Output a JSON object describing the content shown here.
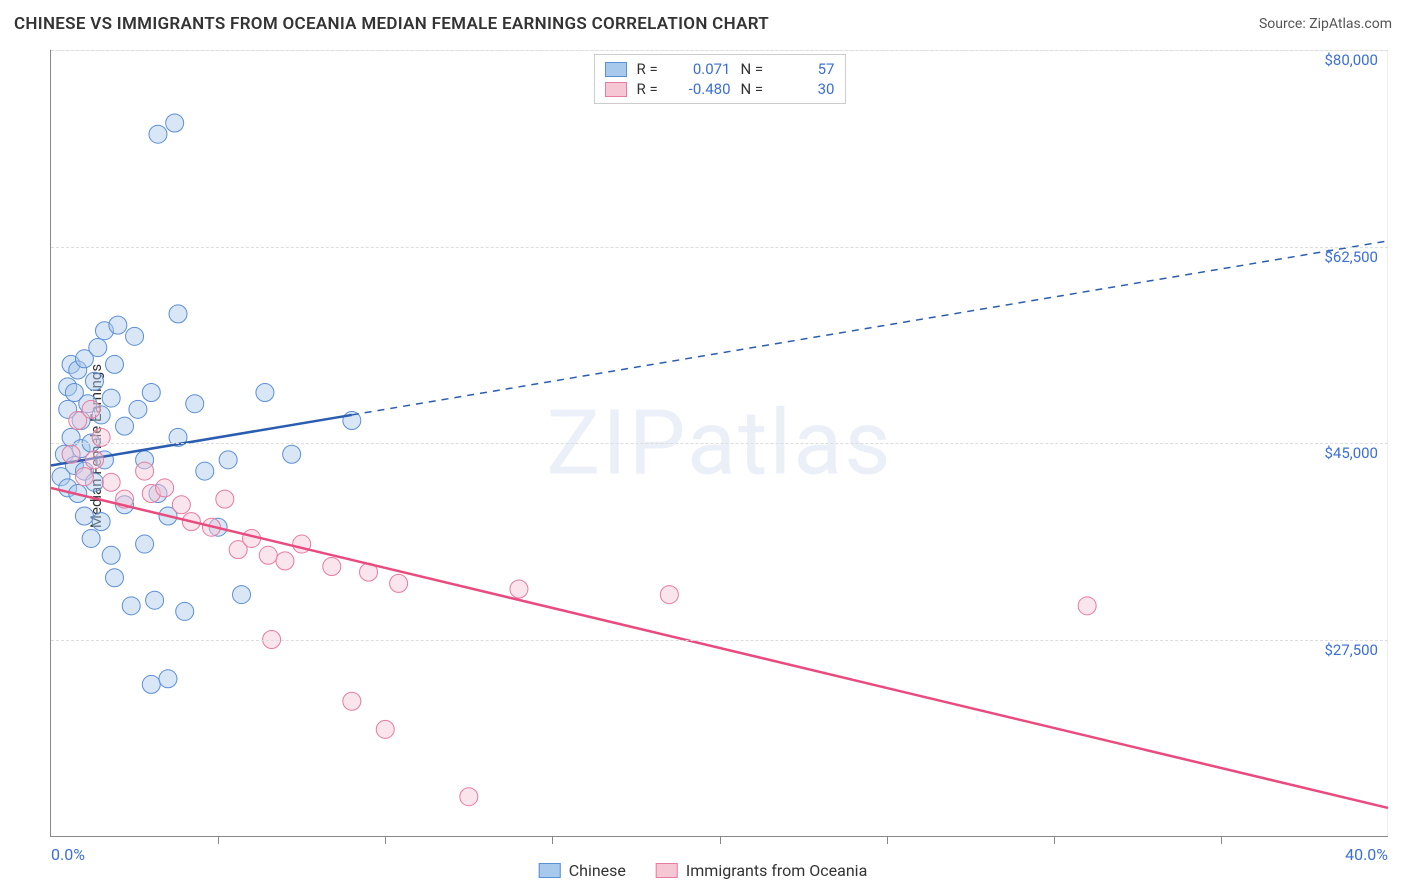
{
  "title": "CHINESE VS IMMIGRANTS FROM OCEANIA MEDIAN FEMALE EARNINGS CORRELATION CHART",
  "source": "Source: ZipAtlas.com",
  "ylabel": "Median Female Earnings",
  "watermark": "ZIPatlas",
  "chart": {
    "type": "scatter",
    "xlim": [
      0,
      40
    ],
    "ylim": [
      10000,
      80000
    ],
    "x_min_label": "0.0%",
    "x_max_label": "40.0%",
    "x_tick_step": 5,
    "y_gridlines": [
      27500,
      45000,
      62500,
      80000
    ],
    "y_tick_labels": [
      "$27,500",
      "$45,000",
      "$62,500",
      "$80,000"
    ],
    "background_color": "#ffffff",
    "grid_color": "#dddddd",
    "axis_color": "#888888",
    "marker_radius": 9,
    "marker_opacity": 0.45,
    "series": [
      {
        "name": "Chinese",
        "color_fill": "#a8c8ec",
        "color_stroke": "#5b8fd6",
        "line_color": "#2a5db0",
        "R": "0.071",
        "N": "57",
        "trend": {
          "x1": 0,
          "y1": 43000,
          "x2": 40,
          "y2": 63000,
          "solid_until_x": 9
        },
        "points": [
          [
            0.3,
            42000
          ],
          [
            0.4,
            44000
          ],
          [
            0.5,
            48000
          ],
          [
            0.5,
            41000
          ],
          [
            0.5,
            50000
          ],
          [
            0.6,
            45500
          ],
          [
            0.6,
            52000
          ],
          [
            0.7,
            43000
          ],
          [
            0.7,
            49500
          ],
          [
            0.8,
            40500
          ],
          [
            0.8,
            51500
          ],
          [
            0.9,
            44500
          ],
          [
            0.9,
            47000
          ],
          [
            1.0,
            38500
          ],
          [
            1.0,
            52500
          ],
          [
            1.0,
            42500
          ],
          [
            1.1,
            48500
          ],
          [
            1.2,
            36500
          ],
          [
            1.2,
            45000
          ],
          [
            1.3,
            50500
          ],
          [
            1.3,
            41500
          ],
          [
            1.4,
            53500
          ],
          [
            1.5,
            38000
          ],
          [
            1.5,
            47500
          ],
          [
            1.6,
            43500
          ],
          [
            1.6,
            55000
          ],
          [
            1.8,
            35000
          ],
          [
            1.8,
            49000
          ],
          [
            1.9,
            33000
          ],
          [
            1.9,
            52000
          ],
          [
            2.0,
            55500
          ],
          [
            2.2,
            39500
          ],
          [
            2.2,
            46500
          ],
          [
            2.4,
            30500
          ],
          [
            2.5,
            54500
          ],
          [
            2.6,
            48000
          ],
          [
            2.8,
            36000
          ],
          [
            2.8,
            43500
          ],
          [
            3.0,
            49500
          ],
          [
            3.0,
            23500
          ],
          [
            3.1,
            31000
          ],
          [
            3.2,
            40500
          ],
          [
            3.2,
            72500
          ],
          [
            3.5,
            24000
          ],
          [
            3.5,
            38500
          ],
          [
            3.7,
            73500
          ],
          [
            3.8,
            45500
          ],
          [
            3.8,
            56500
          ],
          [
            4.0,
            30000
          ],
          [
            4.3,
            48500
          ],
          [
            4.6,
            42500
          ],
          [
            5.0,
            37500
          ],
          [
            5.3,
            43500
          ],
          [
            5.7,
            31500
          ],
          [
            6.4,
            49500
          ],
          [
            7.2,
            44000
          ],
          [
            9.0,
            47000
          ]
        ]
      },
      {
        "name": "Immigrants from Oceania",
        "color_fill": "#f7c6d4",
        "color_stroke": "#e77ba0",
        "line_color": "#e94b7e",
        "R": "-0.480",
        "N": "30",
        "trend": {
          "x1": 0,
          "y1": 41000,
          "x2": 40,
          "y2": 12500,
          "solid_until_x": 40
        },
        "points": [
          [
            0.6,
            44000
          ],
          [
            0.8,
            47000
          ],
          [
            1.0,
            42000
          ],
          [
            1.2,
            48000
          ],
          [
            1.3,
            43500
          ],
          [
            1.5,
            45500
          ],
          [
            1.8,
            41500
          ],
          [
            2.2,
            40000
          ],
          [
            2.8,
            42500
          ],
          [
            3.0,
            40500
          ],
          [
            3.4,
            41000
          ],
          [
            3.9,
            39500
          ],
          [
            4.2,
            38000
          ],
          [
            4.8,
            37500
          ],
          [
            5.2,
            40000
          ],
          [
            5.6,
            35500
          ],
          [
            6.0,
            36500
          ],
          [
            6.5,
            35000
          ],
          [
            6.6,
            27500
          ],
          [
            7.0,
            34500
          ],
          [
            7.5,
            36000
          ],
          [
            8.4,
            34000
          ],
          [
            9.0,
            22000
          ],
          [
            9.5,
            33500
          ],
          [
            10.0,
            19500
          ],
          [
            10.4,
            32500
          ],
          [
            12.5,
            13500
          ],
          [
            14.0,
            32000
          ],
          [
            18.5,
            31500
          ],
          [
            31.0,
            30500
          ]
        ]
      }
    ]
  },
  "legend_top_labels": {
    "R": "R =",
    "N": "N ="
  },
  "legend_bottom": [
    "Chinese",
    "Immigrants from Oceania"
  ]
}
